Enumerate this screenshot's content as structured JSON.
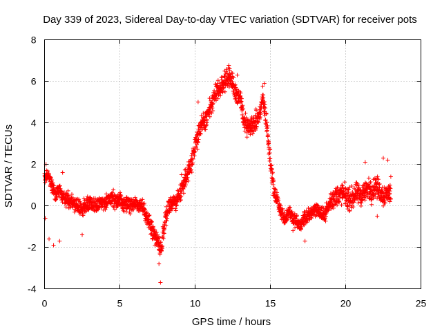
{
  "chart_data": {
    "type": "scatter",
    "title": "Day 339 of 2023, Sidereal Day-to-day VTEC variation (SDTVAR) for receiver pots",
    "xlabel": "GPS time / hours",
    "ylabel": "SDTVAR / TECUs",
    "xlim": [
      0,
      25
    ],
    "ylim": [
      -4,
      8
    ],
    "xticks": [
      0,
      5,
      10,
      15,
      20,
      25
    ],
    "yticks": [
      -4,
      -2,
      0,
      2,
      4,
      6,
      8
    ],
    "xtick_labels": [
      "0",
      "5",
      "10",
      "15",
      "20",
      "25"
    ],
    "ytick_labels": [
      "-4",
      "-2",
      "0",
      "2",
      "4",
      "6",
      "8"
    ],
    "grid": true,
    "marker": "plus",
    "color": "#ff0000",
    "series": [
      {
        "name": "SDTVAR",
        "x": [
          0,
          0.25,
          0.5,
          0.75,
          1,
          1.25,
          1.5,
          1.75,
          2,
          2.25,
          2.5,
          2.75,
          3,
          3.25,
          3.5,
          3.75,
          4,
          4.25,
          4.5,
          4.75,
          5,
          5.25,
          5.5,
          5.75,
          6,
          6.25,
          6.5,
          6.75,
          7,
          7.25,
          7.5,
          7.75,
          8,
          8.25,
          8.5,
          8.75,
          9,
          9.25,
          9.5,
          9.75,
          10,
          10.25,
          10.5,
          10.75,
          11,
          11.25,
          11.5,
          11.75,
          12,
          12.25,
          12.5,
          12.75,
          13,
          13.25,
          13.5,
          13.75,
          14,
          14.25,
          14.5,
          14.75,
          15,
          15.25,
          15.5,
          15.75,
          16,
          16.25,
          16.5,
          16.75,
          17,
          17.25,
          17.5,
          17.75,
          18,
          18.25,
          18.5,
          18.75,
          19,
          19.25,
          19.5,
          19.75,
          20,
          20.25,
          20.5,
          20.75,
          21,
          21.25,
          21.5,
          21.75,
          22,
          22.25,
          22.5,
          22.75,
          23
        ],
        "y": [
          1.3,
          1.5,
          0.9,
          0.6,
          0.7,
          0.4,
          0.3,
          0.2,
          0.1,
          0.0,
          -0.2,
          0.0,
          0.2,
          0.1,
          0.0,
          0.2,
          0.1,
          0.3,
          0.4,
          0.2,
          0.3,
          0.0,
          0.1,
          0.0,
          0.2,
          -0.1,
          0.0,
          -0.5,
          -0.9,
          -1.3,
          -1.6,
          -2.2,
          -0.6,
          0.0,
          0.1,
          0.2,
          0.6,
          1.1,
          1.6,
          2.1,
          2.9,
          3.6,
          3.9,
          4.2,
          4.7,
          5.2,
          5.6,
          5.7,
          6.1,
          6.2,
          5.9,
          5.4,
          5.1,
          4.1,
          3.7,
          3.9,
          4.0,
          4.3,
          5.2,
          4.0,
          2.2,
          0.6,
          0.2,
          -0.4,
          -0.6,
          -0.2,
          -0.6,
          -0.8,
          -1.0,
          -0.6,
          -0.5,
          -0.3,
          -0.1,
          -0.3,
          -0.5,
          -0.2,
          0.2,
          0.4,
          0.5,
          0.6,
          0.5,
          0.3,
          0.4,
          0.6,
          0.5,
          0.7,
          0.8,
          0.7,
          1.0,
          0.7,
          0.5,
          0.6,
          0.6
        ]
      }
    ],
    "outliers": [
      {
        "x": 0.1,
        "y": 2.0
      },
      {
        "x": 0.05,
        "y": -0.6
      },
      {
        "x": 0.3,
        "y": -1.6
      },
      {
        "x": 0.6,
        "y": -1.9
      },
      {
        "x": 1.0,
        "y": -1.7
      },
      {
        "x": 1.2,
        "y": 1.6
      },
      {
        "x": 2.5,
        "y": -1.4
      },
      {
        "x": 7.7,
        "y": -3.7
      },
      {
        "x": 7.6,
        "y": -2.8
      },
      {
        "x": 12.3,
        "y": 6.6
      },
      {
        "x": 12.8,
        "y": 6.3
      },
      {
        "x": 14.6,
        "y": 5.9
      },
      {
        "x": 17.3,
        "y": -1.7
      },
      {
        "x": 16.5,
        "y": -1.2
      },
      {
        "x": 21.3,
        "y": 2.1
      },
      {
        "x": 22.5,
        "y": 2.3
      },
      {
        "x": 22.8,
        "y": 2.2
      },
      {
        "x": 23.0,
        "y": 1.4
      },
      {
        "x": 22.1,
        "y": -0.5
      },
      {
        "x": 10.2,
        "y": 5.0
      },
      {
        "x": 9.1,
        "y": 1.5
      }
    ]
  }
}
